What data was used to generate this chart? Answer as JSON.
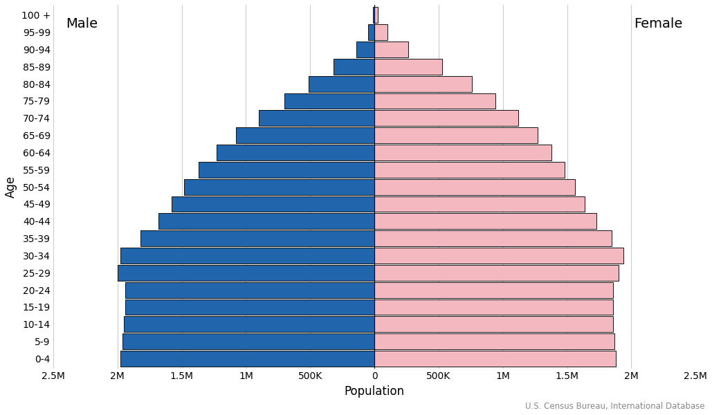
{
  "xlabel": "Population",
  "ylabel": "Age",
  "male_label": "Male",
  "female_label": "Female",
  "source": "U.S. Census Bureau, International Database",
  "age_groups": [
    "0-4",
    "5-9",
    "10-14",
    "15-19",
    "20-24",
    "25-29",
    "30-34",
    "35-39",
    "40-44",
    "45-49",
    "50-54",
    "55-59",
    "60-64",
    "65-69",
    "70-74",
    "75-79",
    "80-84",
    "85-89",
    "90-94",
    "95-99",
    "100 +"
  ],
  "male": [
    1980000,
    1960000,
    1950000,
    1940000,
    1940000,
    2000000,
    1980000,
    1820000,
    1680000,
    1580000,
    1480000,
    1370000,
    1230000,
    1080000,
    900000,
    700000,
    510000,
    320000,
    140000,
    48000,
    12000
  ],
  "female": [
    1880000,
    1870000,
    1860000,
    1860000,
    1860000,
    1900000,
    1940000,
    1850000,
    1730000,
    1640000,
    1560000,
    1480000,
    1380000,
    1270000,
    1120000,
    940000,
    760000,
    530000,
    265000,
    103000,
    27000
  ],
  "male_color": "#2166ac",
  "female_color": "#f4b8c1",
  "bar_edge_color": "#111111",
  "bar_linewidth": 0.7,
  "background_color": "#ffffff",
  "grid_color": "#cccccc",
  "xlim": 2500000,
  "tick_positions": [
    -2500000,
    -2000000,
    -1500000,
    -1000000,
    -500000,
    0,
    500000,
    1000000,
    1500000,
    2000000,
    2500000
  ],
  "tick_labels": [
    "2.5M",
    "2M",
    "1.5M",
    "1M",
    "500K",
    "0",
    "500K",
    "1M",
    "1.5M",
    "2M",
    "2.5M"
  ],
  "tick_fontsize": 10,
  "label_fontsize": 12,
  "source_fontsize": 8.5,
  "male_female_fontsize": 14,
  "bar_height": 0.92
}
